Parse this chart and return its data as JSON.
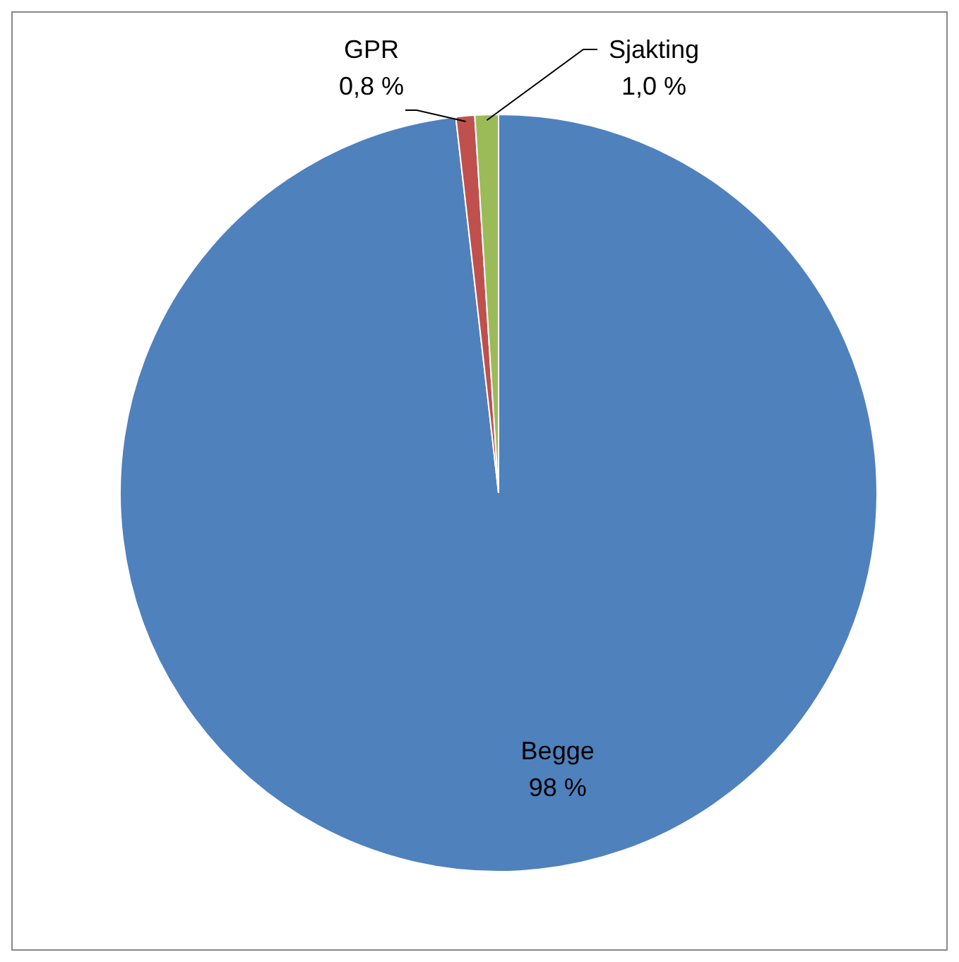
{
  "chart_data": {
    "type": "pie",
    "categories": [
      "Begge",
      "GPR",
      "Sjakting"
    ],
    "values": [
      98,
      0.8,
      1.0
    ],
    "value_labels": [
      "98 %",
      "0,8 %",
      "1,0 %"
    ],
    "colors": [
      "#4f81bd",
      "#c0504d",
      "#9bbb59"
    ],
    "legend": false
  }
}
